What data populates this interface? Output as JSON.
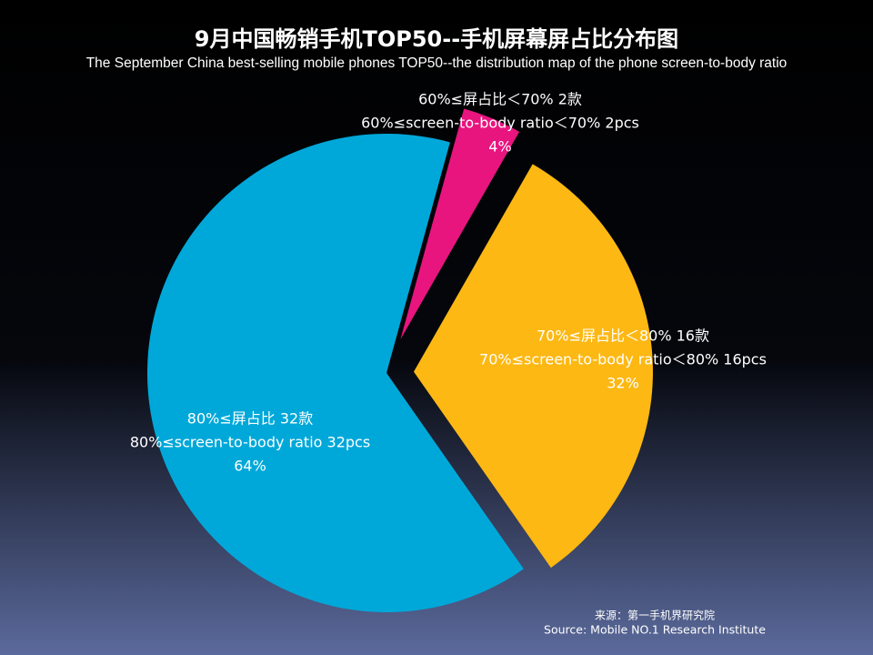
{
  "chart_data": {
    "type": "pie",
    "title": "9月中国畅销手机TOP50--手机屏幕屏占比分布图",
    "subtitle": "The September China best-selling mobile phones TOP50--the distribution map of the phone screen-to-body ratio",
    "slices": [
      {
        "label_cn": "60%≤屏占比＜70% 2款",
        "label_en": "60%≤screen-to-body ratio＜70% 2pcs",
        "value": 4,
        "value_label": "4%",
        "color": "#e8157f"
      },
      {
        "label_cn": "70%≤屏占比＜80% 16款",
        "label_en": "70%≤screen-to-body ratio＜80%  16pcs",
        "value": 32,
        "value_label": "32%",
        "color": "#fdb813"
      },
      {
        "label_cn": "80%≤屏占比 32款",
        "label_en": "80%≤screen-to-body ratio 32pcs",
        "value": 64,
        "value_label": "64%",
        "color": "#00a8d9"
      }
    ],
    "source": [
      "来源：第一手机界研究院",
      "Source: Mobile NO.1 Research Institute"
    ]
  }
}
